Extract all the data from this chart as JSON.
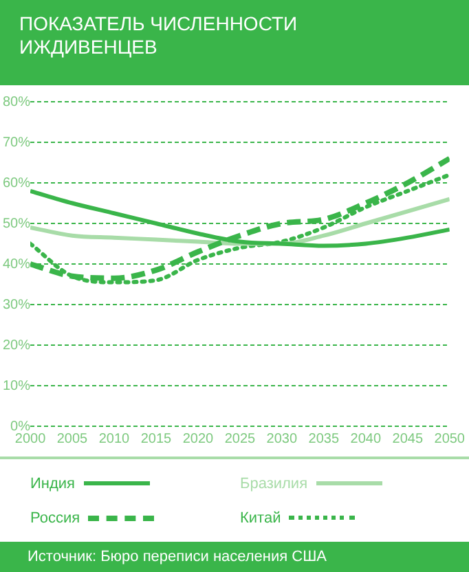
{
  "chart_data": {
    "type": "line",
    "title": "ПОКАЗАТЕЛЬ ЧИСЛЕННОСТИ ИЖДИВЕНЦЕВ",
    "annotations": [
      "Источник: Бюро переписи населения США"
    ],
    "x": [
      2000,
      2005,
      2010,
      2015,
      2020,
      2025,
      2030,
      2035,
      2040,
      2045,
      2050
    ],
    "series": [
      {
        "name": "Индия",
        "color": "#3ab54a",
        "line_style": "solid",
        "values": [
          58,
          55,
          52.5,
          50,
          47.5,
          45.5,
          45,
          44.5,
          45,
          46.5,
          48.5
        ]
      },
      {
        "name": "Россия",
        "color": "#3ab54a",
        "line_style": "dashed",
        "values": [
          40,
          37,
          36.5,
          38.5,
          43,
          47,
          50,
          51,
          55,
          60,
          66
        ]
      },
      {
        "name": "Бразилия",
        "color": "#a8dca8",
        "line_style": "solid",
        "values": [
          49,
          47,
          46.5,
          46,
          45.5,
          45,
          45,
          47,
          50,
          53,
          56
        ]
      },
      {
        "name": "Китай",
        "color": "#3ab54a",
        "line_style": "dotted",
        "values": [
          45,
          37,
          35.5,
          36,
          41,
          44,
          45.5,
          49,
          54,
          58,
          62
        ]
      }
    ],
    "xlim": [
      2000,
      2050
    ],
    "xticks": [
      2000,
      2005,
      2010,
      2015,
      2020,
      2025,
      2030,
      2035,
      2040,
      2045,
      2050
    ],
    "ylim": [
      0,
      80
    ],
    "yticks": [
      {
        "value": 0,
        "label": "0%"
      },
      {
        "value": 10,
        "label": "10%"
      },
      {
        "value": 20,
        "label": "20%"
      },
      {
        "value": 30,
        "label": "30%"
      },
      {
        "value": 40,
        "label": "40%"
      },
      {
        "value": 50,
        "label": "50%"
      },
      {
        "value": 60,
        "label": "60%"
      },
      {
        "value": 70,
        "label": "70%"
      },
      {
        "value": 80,
        "label": "80%"
      }
    ],
    "grid": "y",
    "legend": "bottom",
    "marker": "none"
  }
}
